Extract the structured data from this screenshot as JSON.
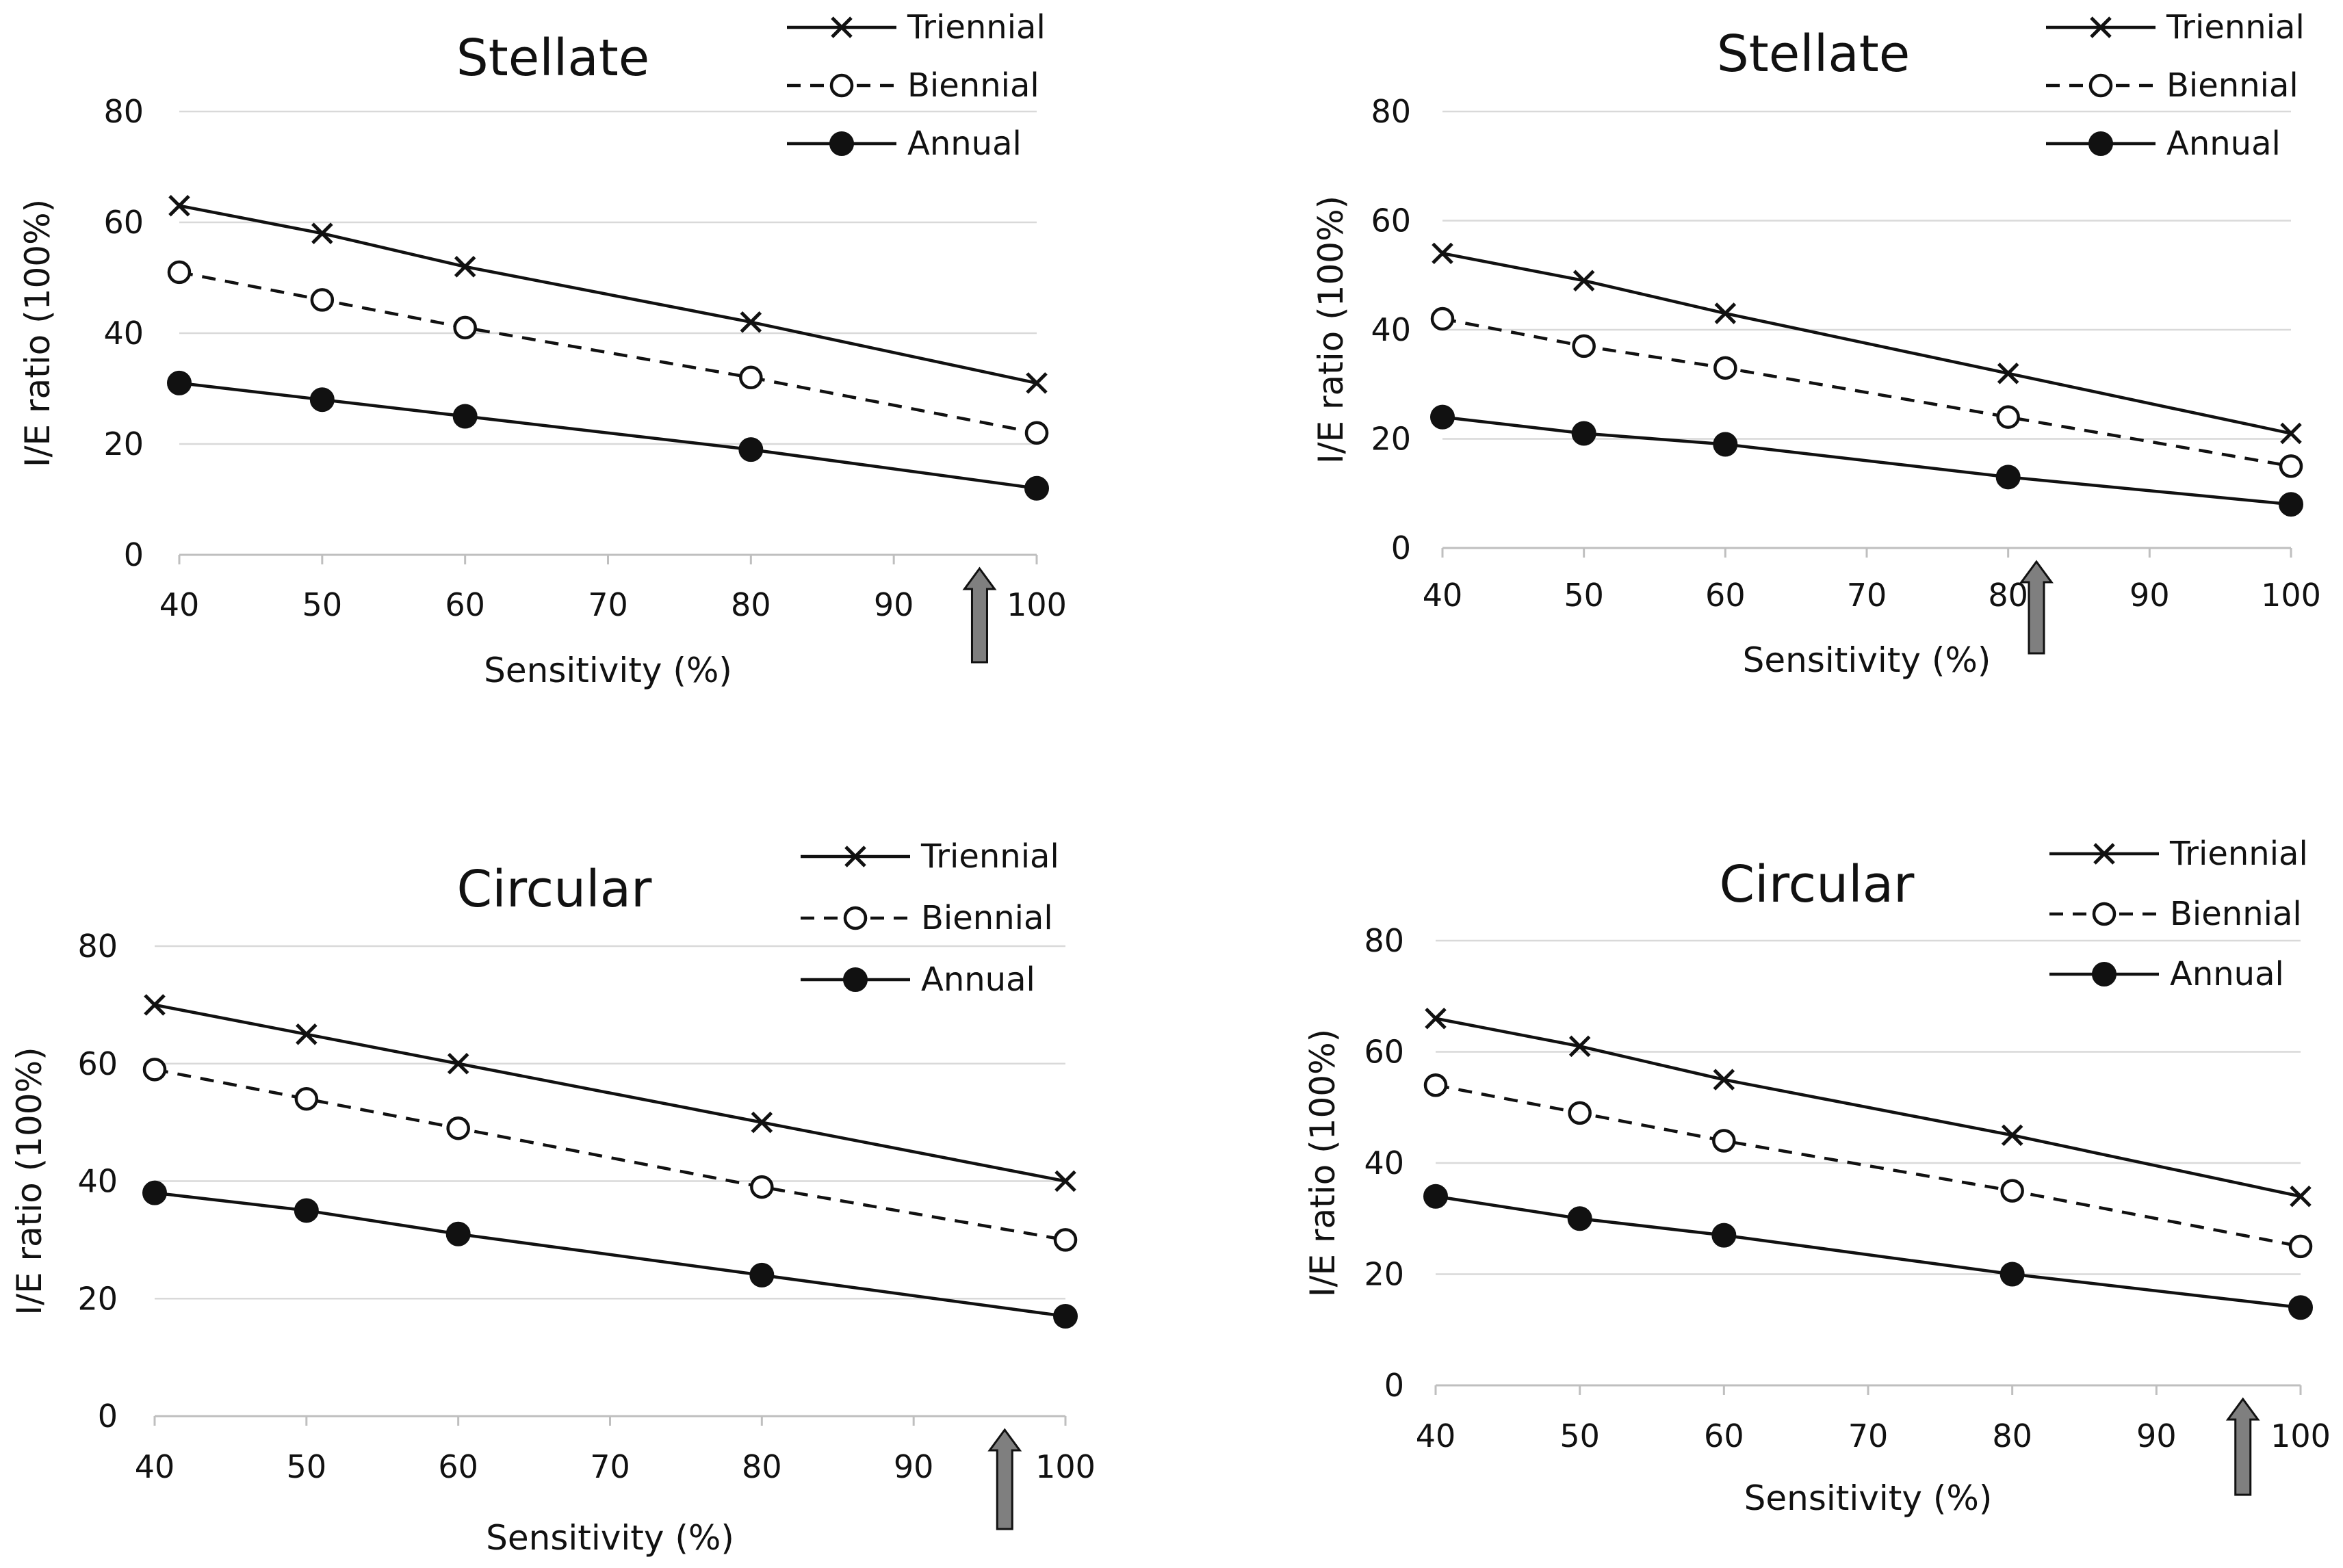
{
  "chart_data": [
    {
      "type": "line",
      "title": "Stellate",
      "xlabel": "Sensitivity (%)",
      "ylabel": "I/E ratio (100%)",
      "xticks": [
        "40",
        "50",
        "60",
        "70",
        "80",
        "90",
        "100"
      ],
      "yticks": [
        "0",
        "20",
        "40",
        "60",
        "80"
      ],
      "xlim": [
        40,
        100
      ],
      "ylim": [
        0,
        80
      ],
      "grid": true,
      "legend_position": "top-right",
      "arrow_at_x": 96,
      "series": [
        {
          "name": "Triennial",
          "marker": "x",
          "dash": "solid",
          "x": [
            40,
            50,
            60,
            80,
            100
          ],
          "values": [
            63,
            58,
            52,
            42,
            31
          ]
        },
        {
          "name": "Biennial",
          "marker": "open-circle",
          "dash": "dashed",
          "x": [
            40,
            50,
            60,
            80,
            100
          ],
          "values": [
            51,
            46,
            41,
            32,
            22
          ]
        },
        {
          "name": "Annual",
          "marker": "filled-circle",
          "dash": "solid",
          "x": [
            40,
            50,
            60,
            80,
            100
          ],
          "values": [
            31,
            28,
            25,
            19,
            12
          ]
        }
      ]
    },
    {
      "type": "line",
      "title": "Stellate",
      "xlabel": "Sensitivity (%)",
      "ylabel": "I/E ratio (100%)",
      "xticks": [
        "40",
        "50",
        "60",
        "70",
        "80",
        "90",
        "100"
      ],
      "yticks": [
        "0",
        "20",
        "40",
        "60",
        "80"
      ],
      "xlim": [
        40,
        100
      ],
      "ylim": [
        0,
        80
      ],
      "grid": true,
      "legend_position": "top-right",
      "arrow_at_x": 82,
      "series": [
        {
          "name": "Triennial",
          "marker": "x",
          "dash": "solid",
          "x": [
            40,
            50,
            60,
            80,
            100
          ],
          "values": [
            54,
            49,
            43,
            32,
            21
          ]
        },
        {
          "name": "Biennial",
          "marker": "open-circle",
          "dash": "dashed",
          "x": [
            40,
            50,
            60,
            80,
            100
          ],
          "values": [
            42,
            37,
            33,
            24,
            15
          ]
        },
        {
          "name": "Annual",
          "marker": "filled-circle",
          "dash": "solid",
          "x": [
            40,
            50,
            60,
            80,
            100
          ],
          "values": [
            24,
            21,
            19,
            13,
            8
          ]
        }
      ]
    },
    {
      "type": "line",
      "title": "Circular",
      "xlabel": "Sensitivity (%)",
      "ylabel": "I/E ratio (100%)",
      "xticks": [
        "40",
        "50",
        "60",
        "70",
        "80",
        "90",
        "100"
      ],
      "yticks": [
        "0",
        "20",
        "40",
        "60",
        "80"
      ],
      "xlim": [
        40,
        100
      ],
      "ylim": [
        0,
        80
      ],
      "grid": true,
      "legend_position": "top-right",
      "arrow_at_x": 96,
      "series": [
        {
          "name": "Triennial",
          "marker": "x",
          "dash": "solid",
          "x": [
            40,
            50,
            60,
            80,
            100
          ],
          "values": [
            70,
            65,
            60,
            50,
            40
          ]
        },
        {
          "name": "Biennial",
          "marker": "open-circle",
          "dash": "dashed",
          "x": [
            40,
            50,
            60,
            80,
            100
          ],
          "values": [
            59,
            54,
            49,
            39,
            30
          ]
        },
        {
          "name": "Annual",
          "marker": "filled-circle",
          "dash": "solid",
          "x": [
            40,
            50,
            60,
            80,
            100
          ],
          "values": [
            38,
            35,
            31,
            24,
            17
          ]
        }
      ]
    },
    {
      "type": "line",
      "title": "Circular",
      "xlabel": "Sensitivity (%)",
      "ylabel": "I/E ratio (100%)",
      "xticks": [
        "40",
        "50",
        "60",
        "70",
        "80",
        "90",
        "100"
      ],
      "yticks": [
        "0",
        "20",
        "40",
        "60",
        "80"
      ],
      "xlim": [
        40,
        100
      ],
      "ylim": [
        0,
        80
      ],
      "grid": true,
      "legend_position": "top-right",
      "arrow_at_x": 96,
      "series": [
        {
          "name": "Triennial",
          "marker": "x",
          "dash": "solid",
          "x": [
            40,
            50,
            60,
            80,
            100
          ],
          "values": [
            66,
            61,
            55,
            45,
            34
          ]
        },
        {
          "name": "Biennial",
          "marker": "open-circle",
          "dash": "dashed",
          "x": [
            40,
            50,
            60,
            80,
            100
          ],
          "values": [
            54,
            49,
            44,
            35,
            25
          ]
        },
        {
          "name": "Annual",
          "marker": "filled-circle",
          "dash": "solid",
          "x": [
            40,
            50,
            60,
            80,
            100
          ],
          "values": [
            34,
            30,
            27,
            20,
            14
          ]
        }
      ]
    }
  ],
  "colors": {
    "line": "#111111",
    "grid": "#d9d9d9",
    "axis": "#bfbfbf",
    "arrow_fill": "#7f7f7f"
  }
}
